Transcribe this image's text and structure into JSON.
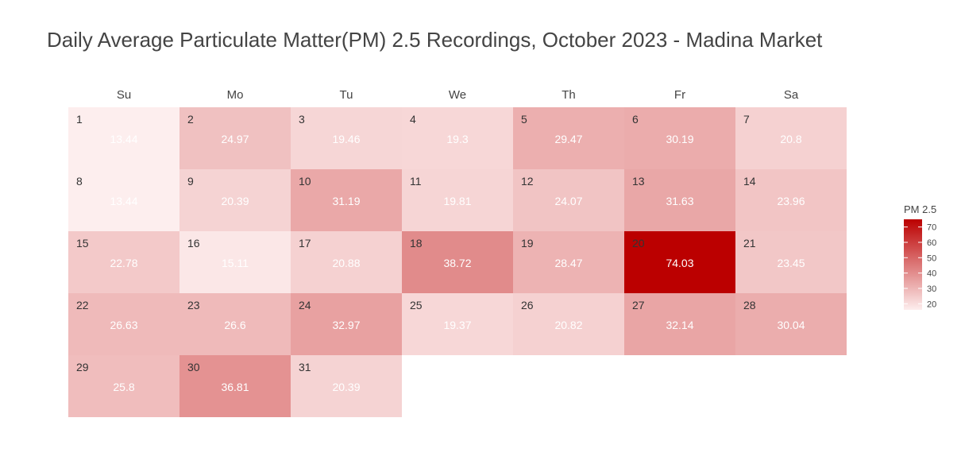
{
  "chart_data": {
    "type": "heatmap",
    "title": "Daily Average Particulate Matter(PM) 2.5 Recordings, October 2023 - Madina Market",
    "weekdays": [
      "Su",
      "Mo",
      "Tu",
      "We",
      "Th",
      "Fr",
      "Sa"
    ],
    "first_weekday_index": 0,
    "days": [
      1,
      2,
      3,
      4,
      5,
      6,
      7,
      8,
      9,
      10,
      11,
      12,
      13,
      14,
      15,
      16,
      17,
      18,
      19,
      20,
      21,
      22,
      23,
      24,
      25,
      26,
      27,
      28,
      29,
      30,
      31
    ],
    "values": [
      "13.44",
      "24.97",
      "19.46",
      "19.3",
      "29.47",
      "30.19",
      "20.8",
      "13.44",
      "20.39",
      "31.19",
      "19.81",
      "24.07",
      "31.63",
      "23.96",
      "22.78",
      "15.11",
      "20.88",
      "38.72",
      "28.47",
      "74.03",
      "23.45",
      "26.63",
      "26.6",
      "32.97",
      "19.37",
      "20.82",
      "32.14",
      "30.04",
      "25.8",
      "36.81",
      "20.39"
    ],
    "color_scale": {
      "low_color": "#fdeeee",
      "high_color": "#bb0000",
      "min": 13.44,
      "max": 74.03
    },
    "legend": {
      "title": "PM 2.5",
      "ticks": [
        "70",
        "60",
        "50",
        "40",
        "30",
        "20"
      ],
      "position": "right"
    },
    "grid": false
  }
}
